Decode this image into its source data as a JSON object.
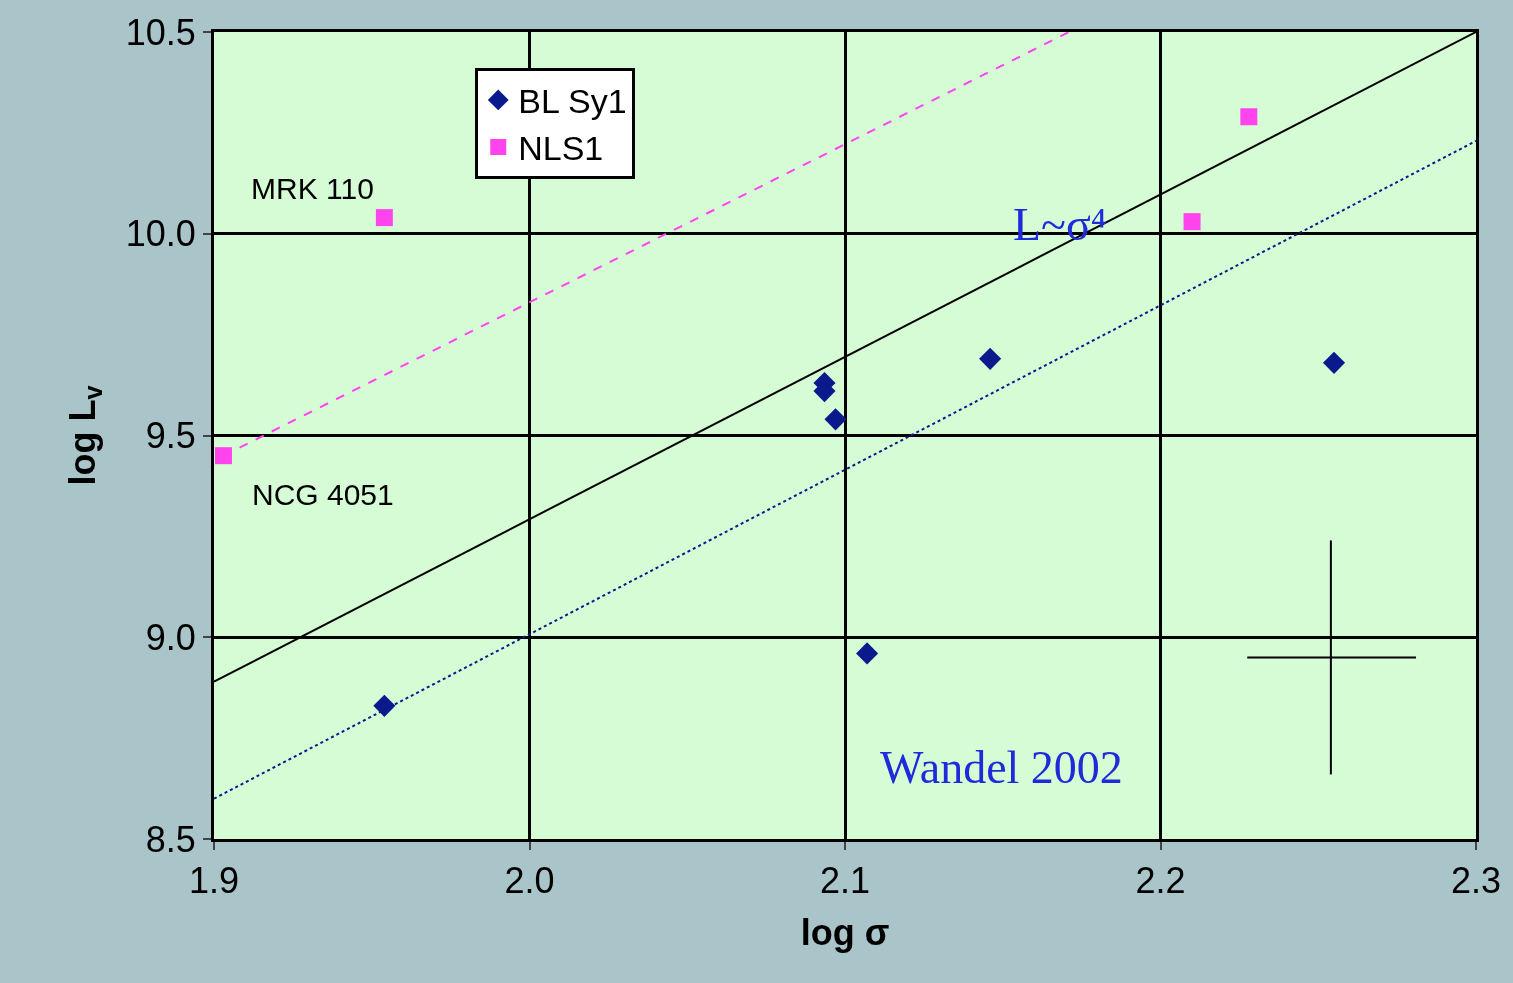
{
  "chart_data": {
    "type": "scatter",
    "xlabel": "log σ",
    "ylabel": "log L$_{v}$",
    "xlim": [
      1.9,
      2.3
    ],
    "xticks": [
      1.9,
      {
        "value": 2.0,
        "label": "2.0"
      },
      2.1,
      2.2,
      2.3
    ],
    "ylim": [
      8.5,
      10.5
    ],
    "yticks": [
      {
        "value": 8.5,
        "label": "8.5"
      },
      {
        "value": 9.0,
        "label": "9.0"
      },
      {
        "value": 9.5,
        "label": "9.5"
      },
      {
        "value": 10.0,
        "label": "10.0"
      },
      {
        "value": 10.5,
        "label": "10.5"
      }
    ],
    "grid": true,
    "legend": "top left",
    "series": [
      {
        "name": "BL Sy1",
        "marker": "diamond",
        "color": "#0a1a8c",
        "x": [
          1.954,
          2.0935,
          2.0935,
          2.097,
          2.107,
          2.146,
          2.255
        ],
        "values": [
          8.83,
          9.63,
          9.61,
          9.54,
          8.96,
          9.69,
          9.68
        ]
      },
      {
        "name": "NLS1",
        "marker": "square",
        "color": "#ff44ee",
        "x": [
          1.903,
          1.954,
          2.21,
          2.228
        ],
        "values": [
          9.45,
          10.04,
          10.03,
          10.29
        ]
      },
      {
        "type": "line",
        "line_style": "solid",
        "color": "#000000",
        "x": [
          1.9,
          2.3
        ],
        "values": [
          8.89,
          10.5
        ]
      },
      {
        "type": "line",
        "line_style": "dashed",
        "color": "#ff44ee",
        "x": [
          1.903,
          2.171
        ],
        "values": [
          9.45,
          10.5
        ]
      },
      {
        "type": "line",
        "line_style": "dotted",
        "color": "#0a1a8c",
        "x": [
          1.9,
          2.3
        ],
        "values": [
          8.6,
          10.23
        ]
      },
      {
        "type": "line",
        "line_style": "solid",
        "color": "#000000",
        "x": [
          2.254,
          2.254
        ],
        "values": [
          8.66,
          9.24
        ]
      },
      {
        "type": "line",
        "line_style": "solid",
        "color": "#000000",
        "x": [
          2.2275,
          2.281
        ],
        "values": [
          8.95,
          8.95
        ]
      }
    ],
    "annotations": [
      "MRK 110",
      "NCG 4051",
      "L~σ⁴",
      "Wandel 2002"
    ]
  }
}
